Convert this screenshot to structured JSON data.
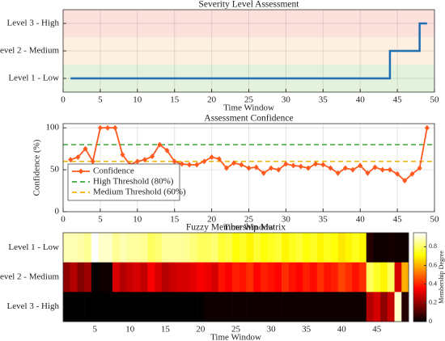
{
  "chart_data": [
    {
      "type": "step",
      "title": "Severity Level Assessment",
      "x_label": "Time Window",
      "x": [
        1,
        2,
        3,
        4,
        5,
        6,
        7,
        8,
        9,
        10,
        11,
        12,
        13,
        14,
        15,
        16,
        17,
        18,
        19,
        20,
        21,
        22,
        23,
        24,
        25,
        26,
        27,
        28,
        29,
        30,
        31,
        32,
        33,
        34,
        35,
        36,
        37,
        38,
        39,
        40,
        41,
        42,
        43,
        44,
        45,
        46,
        47,
        48,
        49
      ],
      "values": [
        1,
        1,
        1,
        1,
        1,
        1,
        1,
        1,
        1,
        1,
        1,
        1,
        1,
        1,
        1,
        1,
        1,
        1,
        1,
        1,
        1,
        1,
        1,
        1,
        1,
        1,
        1,
        1,
        1,
        1,
        1,
        1,
        1,
        1,
        1,
        1,
        1,
        1,
        1,
        1,
        1,
        1,
        1,
        2,
        2,
        2,
        2,
        3,
        3
      ],
      "color": "#1f6fb2",
      "band_colors": [
        "#e3f1dd",
        "#fdf0e1",
        "#fbe0dc"
      ],
      "xlim": [
        0,
        50
      ],
      "xticks": [
        0,
        5,
        10,
        15,
        20,
        25,
        30,
        35,
        40,
        45,
        50
      ],
      "ylim": [
        0.5,
        3.5
      ],
      "yticks": [
        {
          "value": 1,
          "label": "Level 1 - Low"
        },
        {
          "value": 2,
          "label": "Level 2 - Medium"
        },
        {
          "value": 3,
          "label": "Level 3 - High"
        }
      ],
      "grid": true
    },
    {
      "type": "line",
      "title": "Assessment Confidence",
      "x_label": "Time Window",
      "y_label": "Confidence (%)",
      "x": [
        1,
        2,
        3,
        4,
        5,
        6,
        7,
        8,
        9,
        10,
        11,
        12,
        13,
        14,
        15,
        16,
        17,
        18,
        19,
        20,
        21,
        22,
        23,
        24,
        25,
        26,
        27,
        28,
        29,
        30,
        31,
        32,
        33,
        34,
        35,
        36,
        37,
        38,
        39,
        40,
        41,
        42,
        43,
        44,
        45,
        46,
        47,
        48,
        49
      ],
      "series": [
        {
          "name": "Confidence",
          "color": "#ff5a1f",
          "values": [
            62,
            65,
            75,
            60,
            100,
            100,
            100,
            68,
            56,
            60,
            62,
            66,
            80,
            73,
            60,
            57,
            56,
            56,
            60,
            65,
            63,
            52,
            58,
            56,
            52,
            53,
            46,
            52,
            50,
            57,
            55,
            54,
            52,
            57,
            56,
            52,
            46,
            52,
            50,
            55,
            46,
            53,
            50,
            50,
            45,
            37,
            45,
            52,
            100
          ]
        }
      ],
      "thresholds": [
        {
          "name": "High Threshold (80%)",
          "value": 80,
          "color": "#3aa63a"
        },
        {
          "name": "Medium Threshold (60%)",
          "value": 60,
          "color": "#f0b400"
        }
      ],
      "xlim": [
        0,
        50
      ],
      "xticks": [
        0,
        5,
        10,
        15,
        20,
        25,
        30,
        35,
        40,
        45,
        50
      ],
      "ylim": [
        0,
        105
      ],
      "yticks": [
        0,
        50,
        100
      ],
      "grid": true,
      "legend": "lower-left"
    },
    {
      "type": "heatmap",
      "title": "Fuzzy Membership Matrix",
      "x_label": "Time Window",
      "colorbar_label": "Membership Degree",
      "categories": [
        "Level 1 - Low",
        "Level 2 - Medium",
        "Level 3 - High"
      ],
      "x": [
        1,
        2,
        3,
        4,
        5,
        6,
        7,
        8,
        9,
        10,
        11,
        12,
        13,
        14,
        15,
        16,
        17,
        18,
        19,
        20,
        21,
        22,
        23,
        24,
        25,
        26,
        27,
        28,
        29,
        30,
        31,
        32,
        33,
        34,
        35,
        36,
        37,
        38,
        39,
        40,
        41,
        42,
        43,
        44,
        45,
        46,
        47,
        48,
        49
      ],
      "values": [
        [
          0.88,
          0.88,
          0.87,
          0.85,
          0.95,
          0.9,
          0.9,
          0.85,
          0.88,
          0.86,
          0.86,
          0.85,
          0.8,
          0.82,
          0.86,
          0.86,
          0.86,
          0.85,
          0.83,
          0.8,
          0.8,
          0.82,
          0.76,
          0.78,
          0.72,
          0.75,
          0.7,
          0.76,
          0.72,
          0.74,
          0.76,
          0.7,
          0.74,
          0.76,
          0.72,
          0.75,
          0.7,
          0.74,
          0.72,
          0.68,
          0.7,
          0.74,
          0.7,
          0.05,
          0.02,
          0.02,
          0.03,
          0.02,
          0.02
        ],
        [
          0.2,
          0.25,
          0.18,
          0.22,
          0,
          0.02,
          0.02,
          0.3,
          0.25,
          0.28,
          0.3,
          0.27,
          0.35,
          0.3,
          0.25,
          0.28,
          0.3,
          0.3,
          0.32,
          0.35,
          0.33,
          0.3,
          0.38,
          0.35,
          0.4,
          0.38,
          0.42,
          0.36,
          0.4,
          0.38,
          0.36,
          0.42,
          0.38,
          0.36,
          0.4,
          0.37,
          0.42,
          0.38,
          0.4,
          0.45,
          0.42,
          0.38,
          0.42,
          0.8,
          0.75,
          0.7,
          0.8,
          0.3,
          0.6
        ],
        [
          0,
          0,
          0,
          0,
          0,
          0,
          0,
          0,
          0,
          0,
          0,
          0,
          0,
          0,
          0,
          0,
          0,
          0,
          0,
          0,
          0.02,
          0.02,
          0.02,
          0.02,
          0.02,
          0.02,
          0.02,
          0.02,
          0.02,
          0.02,
          0.02,
          0.02,
          0.02,
          0.02,
          0.02,
          0.02,
          0.02,
          0.02,
          0.02,
          0.02,
          0.02,
          0.02,
          0.02,
          0.25,
          0.3,
          0.2,
          0.28,
          0.9,
          0.05
        ]
      ],
      "colormap": "hot",
      "clim": [
        0,
        0.95
      ],
      "cticks": [
        0,
        0.2,
        0.4,
        0.6,
        0.8
      ],
      "xlim": [
        0.5,
        49.5
      ],
      "xticks": [
        5,
        10,
        15,
        20,
        25,
        30,
        35,
        40,
        45
      ]
    }
  ]
}
